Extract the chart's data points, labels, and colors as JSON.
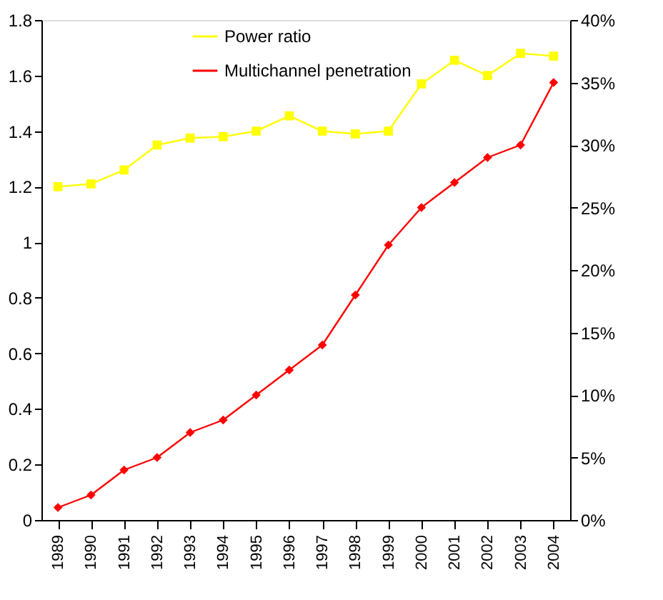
{
  "chart_data": {
    "type": "line",
    "categories": [
      "1989",
      "1990",
      "1991",
      "1992",
      "1993",
      "1994",
      "1995",
      "1996",
      "1997",
      "1998",
      "1999",
      "2000",
      "2001",
      "2002",
      "2003",
      "2004"
    ],
    "series": [
      {
        "name": "Power ratio",
        "color": "#ffff00",
        "marker": "square",
        "values": [
          1.2,
          1.21,
          1.26,
          1.35,
          1.375,
          1.38,
          1.4,
          1.455,
          1.4,
          1.39,
          1.4,
          1.57,
          1.655,
          1.6,
          1.68,
          1.67
        ]
      },
      {
        "name": "Multichannel penetration",
        "color": "#ff0000",
        "marker": "diamond",
        "axis": "y2",
        "values": [
          1,
          2,
          4,
          5,
          7,
          8,
          10,
          12,
          14,
          18,
          22,
          25,
          27,
          29,
          30,
          35
        ]
      }
    ],
    "ylim": [
      0,
      1.8
    ],
    "yticks": [
      0,
      0.2,
      0.4,
      0.6,
      0.8,
      1,
      1.2,
      1.4,
      1.6,
      1.8
    ],
    "y2lim": [
      0,
      40
    ],
    "y2ticks": [
      {
        "value": 0,
        "label": "0%"
      },
      {
        "value": 5,
        "label": "5%"
      },
      {
        "value": 10,
        "label": "10%"
      },
      {
        "value": 15,
        "label": "15%"
      },
      {
        "value": 20,
        "label": "20%"
      },
      {
        "value": 25,
        "label": "25%"
      },
      {
        "value": 30,
        "label": "30%"
      },
      {
        "value": 35,
        "label": "35%"
      },
      {
        "value": 40,
        "label": "40%"
      }
    ],
    "grid": false,
    "legend": "top",
    "line_style": "solid"
  }
}
